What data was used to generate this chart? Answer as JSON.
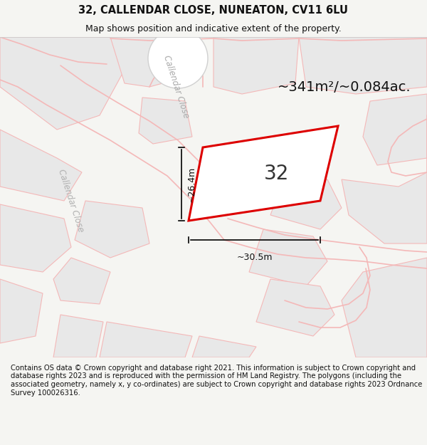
{
  "title_line1": "32, CALLENDAR CLOSE, NUNEATON, CV11 6LU",
  "title_line2": "Map shows position and indicative extent of the property.",
  "footer_text": "Contains OS data © Crown copyright and database right 2021. This information is subject to Crown copyright and database rights 2023 and is reproduced with the permission of HM Land Registry. The polygons (including the associated geometry, namely x, y co-ordinates) are subject to Crown copyright and database rights 2023 Ordnance Survey 100026316.",
  "area_label": "~341m²/~0.084ac.",
  "plot_number": "32",
  "dim_height": "~26.4m",
  "dim_width": "~30.5m",
  "road_label_upper": "Callendar Close",
  "road_label_lower": "Callendar Close",
  "bg_color": "#f5f5f2",
  "map_bg": "#ffffff",
  "plot_color": "#dd0000",
  "road_line_color": "#f4b8b8",
  "block_fill": "#e8e8e8",
  "block_edge": "#d0d0d0",
  "title_fontsize": 10.5,
  "subtitle_fontsize": 9,
  "footer_fontsize": 7.2,
  "area_fontsize": 14,
  "dim_fontsize": 9,
  "plot_label_fontsize": 20,
  "road_label_fontsize": 8.5
}
